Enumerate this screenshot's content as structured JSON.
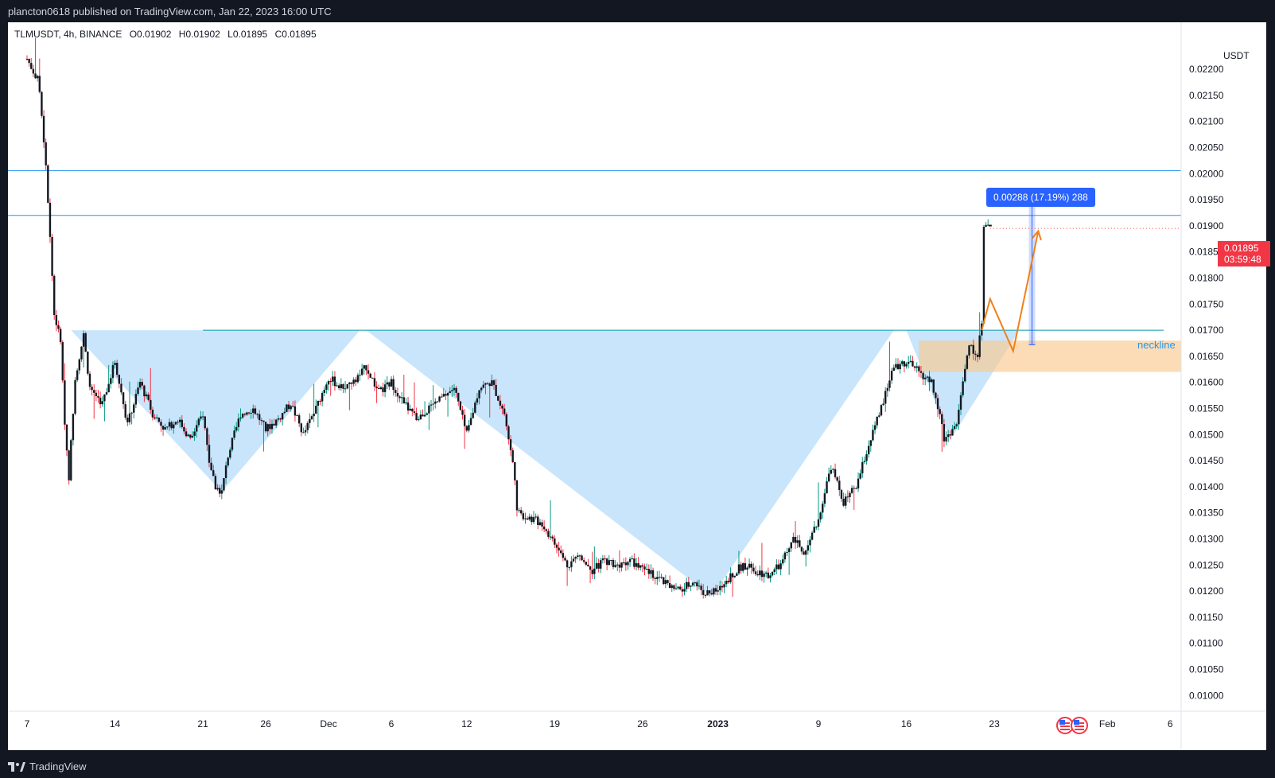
{
  "header": {
    "published": "plancton0618 published on TradingView.com, Jan 22, 2023 16:00 UTC"
  },
  "footer": {
    "brand": "TradingView"
  },
  "legend": {
    "symbol": "TLMUSDT, 4h, BINANCE",
    "open": "O0.01902",
    "high": "H0.01902",
    "low": "L0.01895",
    "close": "C0.01895"
  },
  "axis": {
    "currency": "USDT"
  },
  "price_tag": {
    "value": "0.01895",
    "countdown": "03:59:48"
  },
  "annotations": {
    "measure": "0.00288 (17.19%) 288",
    "neckline": "neckline"
  },
  "colors": {
    "up": "#089981",
    "down": "#f23645",
    "candle_body": "#131722",
    "hline": "#2196f3",
    "pattern_fill": "#bbdefb",
    "zone_fill": "#f9c98f",
    "arrow": "#f0801a",
    "measure": "#2962ff"
  },
  "chart_data": {
    "type": "candlestick",
    "symbol": "TLMUSDT",
    "interval": "4h",
    "exchange": "BINANCE",
    "ylim": [
      0.0097,
      0.0229
    ],
    "yticks": [
      "0.02200",
      "0.02150",
      "0.02100",
      "0.02050",
      "0.02000",
      "0.01950",
      "0.01900",
      "0.01850",
      "0.01800",
      "0.01750",
      "0.01700",
      "0.01650",
      "0.01600",
      "0.01550",
      "0.01500",
      "0.01450",
      "0.01400",
      "0.01350",
      "0.01300",
      "0.01250",
      "0.01200",
      "0.01150",
      "0.01100",
      "0.01050",
      "0.01000"
    ],
    "xlim": [
      "2022-11-07",
      "2023-02-07"
    ],
    "xticks": [
      {
        "label": "7",
        "date": "2022-11-07"
      },
      {
        "label": "14",
        "date": "2022-11-14"
      },
      {
        "label": "21",
        "date": "2022-11-21"
      },
      {
        "label": "26",
        "date": "2022-11-26"
      },
      {
        "label": "Dec",
        "date": "2022-12-01"
      },
      {
        "label": "6",
        "date": "2022-12-06"
      },
      {
        "label": "12",
        "date": "2022-12-12"
      },
      {
        "label": "19",
        "date": "2022-12-19"
      },
      {
        "label": "26",
        "date": "2022-12-26"
      },
      {
        "label": "2023",
        "date": "2023-01-01",
        "bold": true
      },
      {
        "label": "9",
        "date": "2023-01-09"
      },
      {
        "label": "16",
        "date": "2023-01-16"
      },
      {
        "label": "23",
        "date": "2023-01-23"
      },
      {
        "label": "Feb",
        "date": "2023-02-01"
      },
      {
        "label": "6",
        "date": "2023-02-06"
      }
    ],
    "close_path": [
      [
        "2022-11-07",
        0.0222
      ],
      [
        "2022-11-07T20:00",
        0.0218
      ],
      [
        "2022-11-08",
        0.0216
      ],
      [
        "2022-11-08T12:00",
        0.0202
      ],
      [
        "2022-11-08T20:00",
        0.0188
      ],
      [
        "2022-11-09T04:00",
        0.0173
      ],
      [
        "2022-11-09T16:00",
        0.0168
      ],
      [
        "2022-11-10",
        0.0152
      ],
      [
        "2022-11-10T08:00",
        0.0142
      ],
      [
        "2022-11-10T20:00",
        0.0161
      ],
      [
        "2022-11-11T12:00",
        0.0169
      ],
      [
        "2022-11-12",
        0.0159
      ],
      [
        "2022-11-13",
        0.0156
      ],
      [
        "2022-11-14",
        0.0164
      ],
      [
        "2022-11-15",
        0.0152
      ],
      [
        "2022-11-16",
        0.016
      ],
      [
        "2022-11-17",
        0.0154
      ],
      [
        "2022-11-18",
        0.0151
      ],
      [
        "2022-11-19",
        0.0153
      ],
      [
        "2022-11-20",
        0.0149
      ],
      [
        "2022-11-21",
        0.0154
      ],
      [
        "2022-11-21T12:00",
        0.0145
      ],
      [
        "2022-11-22",
        0.014
      ],
      [
        "2022-11-22T12:00",
        0.0139
      ],
      [
        "2022-11-23",
        0.0146
      ],
      [
        "2022-11-24",
        0.0154
      ],
      [
        "2022-11-25",
        0.0155
      ],
      [
        "2022-11-26",
        0.0151
      ],
      [
        "2022-11-27",
        0.0153
      ],
      [
        "2022-11-28",
        0.0156
      ],
      [
        "2022-11-29",
        0.015
      ],
      [
        "2022-11-30",
        0.0155
      ],
      [
        "2022-12-01",
        0.0161
      ],
      [
        "2022-12-02",
        0.0159
      ],
      [
        "2022-12-03",
        0.016
      ],
      [
        "2022-12-04",
        0.0163
      ],
      [
        "2022-12-05",
        0.0158
      ],
      [
        "2022-12-06",
        0.016
      ],
      [
        "2022-12-07",
        0.0156
      ],
      [
        "2022-12-08",
        0.0153
      ],
      [
        "2022-12-09",
        0.0155
      ],
      [
        "2022-12-10",
        0.0157
      ],
      [
        "2022-12-11",
        0.0159
      ],
      [
        "2022-12-12",
        0.015
      ],
      [
        "2022-12-13",
        0.0159
      ],
      [
        "2022-12-14",
        0.016
      ],
      [
        "2022-12-15",
        0.0154
      ],
      [
        "2022-12-15T20:00",
        0.0142
      ],
      [
        "2022-12-16",
        0.0135
      ],
      [
        "2022-12-17",
        0.0134
      ],
      [
        "2022-12-18",
        0.0133
      ],
      [
        "2022-12-19",
        0.0129
      ],
      [
        "2022-12-20",
        0.0125
      ],
      [
        "2022-12-21",
        0.0127
      ],
      [
        "2022-12-22",
        0.0124
      ],
      [
        "2022-12-23",
        0.0126
      ],
      [
        "2022-12-24",
        0.0125
      ],
      [
        "2022-12-25",
        0.0126
      ],
      [
        "2022-12-26",
        0.0124
      ],
      [
        "2022-12-27",
        0.0123
      ],
      [
        "2022-12-28",
        0.0121
      ],
      [
        "2022-12-29",
        0.012
      ],
      [
        "2022-12-30",
        0.0122
      ],
      [
        "2022-12-31",
        0.01195
      ],
      [
        "2023-01-01",
        0.012
      ],
      [
        "2023-01-02",
        0.0123
      ],
      [
        "2023-01-03",
        0.0125
      ],
      [
        "2023-01-04",
        0.0124
      ],
      [
        "2023-01-05",
        0.0123
      ],
      [
        "2023-01-06",
        0.0125
      ],
      [
        "2023-01-07",
        0.013
      ],
      [
        "2023-01-08",
        0.0127
      ],
      [
        "2023-01-09",
        0.0134
      ],
      [
        "2023-01-10",
        0.0144
      ],
      [
        "2023-01-11",
        0.0137
      ],
      [
        "2023-01-12",
        0.014
      ],
      [
        "2023-01-13",
        0.0148
      ],
      [
        "2023-01-14",
        0.0155
      ],
      [
        "2023-01-15",
        0.0163
      ],
      [
        "2023-01-16",
        0.0164
      ],
      [
        "2023-01-17",
        0.0162
      ],
      [
        "2023-01-18",
        0.016
      ],
      [
        "2023-01-18T20:00",
        0.0152
      ],
      [
        "2023-01-19",
        0.0149
      ],
      [
        "2023-01-20",
        0.0152
      ],
      [
        "2023-01-20T12:00",
        0.016
      ],
      [
        "2023-01-21",
        0.0167
      ],
      [
        "2023-01-21T16:00",
        0.0165
      ],
      [
        "2023-01-22",
        0.0172
      ],
      [
        "2023-01-22T04:00",
        0.01902
      ],
      [
        "2023-01-22T16:00",
        0.01895
      ]
    ],
    "last": {
      "open": 0.01902,
      "high": 0.01902,
      "low": 0.01895,
      "close": 0.01895
    },
    "horizontal_lines": [
      0.02006,
      0.0192
    ],
    "neckline": {
      "label": "neckline",
      "value": 0.017
    },
    "supply_zone": {
      "from": "2023-01-17",
      "top": 0.0168,
      "bottom": 0.0162
    },
    "pattern": [
      {
        "name": "left-shoulder",
        "points": [
          [
            "2022-11-10T12:00",
            0.017
          ],
          [
            "2022-11-22T12:00",
            0.0139
          ],
          [
            "2022-12-03T12:00",
            0.017
          ]
        ]
      },
      {
        "name": "head",
        "points": [
          [
            "2022-12-04",
            0.017
          ],
          [
            "2022-12-31T12:00",
            0.0119
          ],
          [
            "2023-01-15",
            0.017
          ]
        ]
      },
      {
        "name": "right-shoulder",
        "points": [
          [
            "2023-01-16",
            0.017
          ],
          [
            "2023-01-19T12:00",
            0.0149
          ],
          [
            "2023-01-25",
            0.017
          ]
        ]
      }
    ],
    "measure": {
      "date": "2023-01-26",
      "from": 0.01672,
      "to": 0.0196,
      "text": "0.00288 (17.19%) 288"
    },
    "projection": [
      [
        "2023-01-22",
        0.017
      ],
      [
        "2023-01-22T16:00",
        0.0176
      ],
      [
        "2023-01-24T12:00",
        0.0166
      ],
      [
        "2023-01-26T12:00",
        0.0189
      ]
    ]
  }
}
